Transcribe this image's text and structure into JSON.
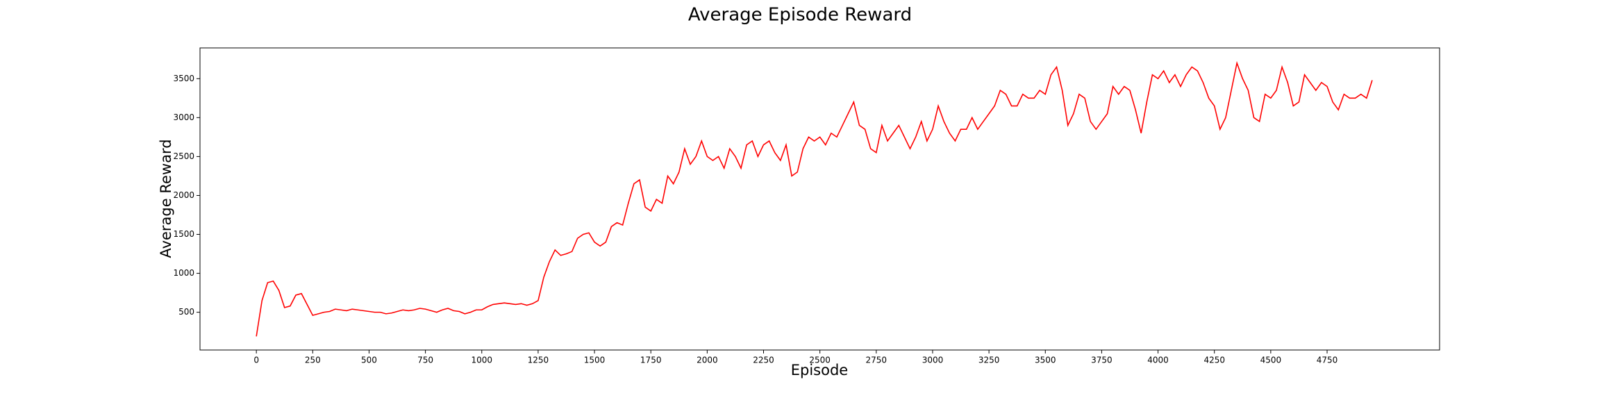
{
  "chart_data": {
    "type": "line",
    "title": "Average Episode Reward",
    "xlabel": "Episode",
    "ylabel": "Average Reward",
    "x": [
      0,
      25,
      50,
      75,
      100,
      125,
      150,
      175,
      200,
      225,
      250,
      275,
      300,
      325,
      350,
      375,
      400,
      425,
      450,
      475,
      500,
      525,
      550,
      575,
      600,
      625,
      650,
      675,
      700,
      725,
      750,
      775,
      800,
      825,
      850,
      875,
      900,
      925,
      950,
      975,
      1000,
      1025,
      1050,
      1075,
      1100,
      1125,
      1150,
      1175,
      1200,
      1225,
      1250,
      1275,
      1300,
      1325,
      1350,
      1375,
      1400,
      1425,
      1450,
      1475,
      1500,
      1525,
      1550,
      1575,
      1600,
      1625,
      1650,
      1675,
      1700,
      1725,
      1750,
      1775,
      1800,
      1825,
      1850,
      1875,
      1900,
      1925,
      1950,
      1975,
      2000,
      2025,
      2050,
      2075,
      2100,
      2125,
      2150,
      2175,
      2200,
      2225,
      2250,
      2275,
      2300,
      2325,
      2350,
      2375,
      2400,
      2425,
      2450,
      2475,
      2500,
      2525,
      2550,
      2575,
      2600,
      2625,
      2650,
      2675,
      2700,
      2725,
      2750,
      2775,
      2800,
      2825,
      2850,
      2875,
      2900,
      2925,
      2950,
      2975,
      3000,
      3025,
      3050,
      3075,
      3100,
      3125,
      3150,
      3175,
      3200,
      3225,
      3250,
      3275,
      3300,
      3325,
      3350,
      3375,
      3400,
      3425,
      3450,
      3475,
      3500,
      3525,
      3550,
      3575,
      3600,
      3625,
      3650,
      3675,
      3700,
      3725,
      3750,
      3775,
      3800,
      3825,
      3850,
      3875,
      3900,
      3925,
      3950,
      3975,
      4000,
      4025,
      4050,
      4075,
      4100,
      4125,
      4150,
      4175,
      4200,
      4225,
      4250,
      4275,
      4300,
      4325,
      4350,
      4375,
      4400,
      4425,
      4450,
      4475,
      4500,
      4525,
      4550,
      4575,
      4600,
      4625,
      4650,
      4675,
      4700,
      4725,
      4750,
      4775,
      4800,
      4825,
      4850,
      4875,
      4900,
      4925,
      4950
    ],
    "values": [
      190,
      650,
      880,
      900,
      780,
      560,
      580,
      720,
      740,
      600,
      460,
      480,
      500,
      510,
      540,
      530,
      520,
      540,
      530,
      520,
      510,
      500,
      500,
      480,
      490,
      510,
      530,
      520,
      530,
      550,
      540,
      520,
      500,
      530,
      550,
      520,
      510,
      480,
      500,
      530,
      530,
      570,
      600,
      610,
      620,
      610,
      600,
      610,
      590,
      610,
      650,
      950,
      1150,
      1300,
      1230,
      1250,
      1280,
      1450,
      1500,
      1520,
      1400,
      1350,
      1400,
      1600,
      1650,
      1620,
      1900,
      2150,
      2200,
      1850,
      1800,
      1950,
      1900,
      2250,
      2150,
      2300,
      2600,
      2400,
      2500,
      2700,
      2500,
      2450,
      2500,
      2350,
      2600,
      2500,
      2350,
      2650,
      2700,
      2500,
      2650,
      2700,
      2550,
      2450,
      2650,
      2250,
      2300,
      2600,
      2750,
      2700,
      2750,
      2650,
      2800,
      2750,
      2900,
      3050,
      3200,
      2900,
      2850,
      2600,
      2550,
      2900,
      2700,
      2800,
      2900,
      2750,
      2600,
      2750,
      2950,
      2700,
      2850,
      3150,
      2950,
      2800,
      2700,
      2850,
      2850,
      3000,
      2850,
      2950,
      3050,
      3150,
      3350,
      3300,
      3150,
      3150,
      3300,
      3250,
      3250,
      3350,
      3300,
      3550,
      3650,
      3350,
      2900,
      3050,
      3300,
      3250,
      2950,
      2850,
      2950,
      3050,
      3400,
      3300,
      3400,
      3350,
      3100,
      2800,
      3200,
      3550,
      3500,
      3600,
      3450,
      3550,
      3400,
      3550,
      3650,
      3600,
      3450,
      3250,
      3150,
      2850,
      3000,
      3350,
      3700,
      3500,
      3350,
      3000,
      2950,
      3300,
      3250,
      3350,
      3650,
      3450,
      3150,
      3200,
      3550,
      3450,
      3350,
      3450,
      3400,
      3200,
      3100,
      3300,
      3250,
      3250,
      3300,
      3250,
      3480
    ],
    "color": "#ff0000",
    "xlim": [
      -250,
      5249
    ],
    "ylim": [
      15,
      3895
    ],
    "xticks": [
      0,
      250,
      500,
      750,
      1000,
      1250,
      1500,
      1750,
      2000,
      2250,
      2500,
      2750,
      3000,
      3250,
      3500,
      3750,
      4000,
      4250,
      4500,
      4750
    ],
    "yticks": [
      500,
      1000,
      1500,
      2000,
      2500,
      3000,
      3500
    ],
    "grid": false
  }
}
